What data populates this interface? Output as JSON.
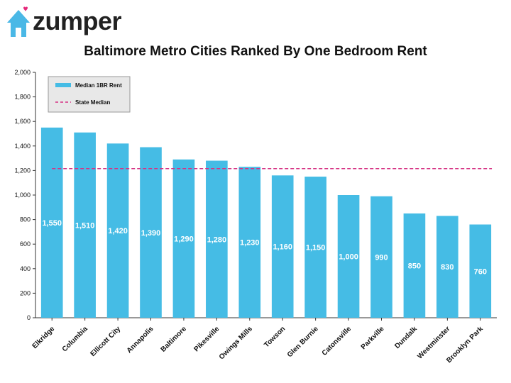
{
  "brand": {
    "name": "zumper",
    "logo_icon": "house-with-heart-icon",
    "logo_color": "#4ab8e6",
    "heart_color": "#e5287a"
  },
  "chart_data": {
    "type": "bar",
    "title": "Baltimore Metro Cities Ranked By One Bedroom Rent",
    "categories": [
      "Elkridge",
      "Columbia",
      "Ellicott City",
      "Annapolis",
      "Baltimore",
      "Pikesville",
      "Owings Mills",
      "Towson",
      "Glen Burnie",
      "Catonsville",
      "Parkville",
      "Dundalk",
      "Westminster",
      "Brooklyn Park"
    ],
    "series": [
      {
        "name": "Median 1BR Rent",
        "values": [
          1550,
          1510,
          1420,
          1390,
          1290,
          1280,
          1230,
          1160,
          1150,
          1000,
          990,
          850,
          830,
          760
        ],
        "color": "#45bce5"
      }
    ],
    "data_labels": [
      "1,550",
      "1,510",
      "1,420",
      "1,390",
      "1,290",
      "1,280",
      "1,230",
      "1,160",
      "1,150",
      "1,000",
      "990",
      "850",
      "830",
      "760"
    ],
    "reference_line": {
      "name": "State Median",
      "value": 1215,
      "color": "#d63384",
      "style": "dashed"
    },
    "ylim": [
      0,
      2000
    ],
    "yticks": [
      0,
      200,
      400,
      600,
      800,
      1000,
      1200,
      1400,
      1600,
      1800,
      2000
    ],
    "ytick_labels": [
      "0",
      "200",
      "400",
      "600",
      "800",
      "1,000",
      "1,200",
      "1,400",
      "1,600",
      "1,800",
      "2,000"
    ],
    "xlabel": "",
    "ylabel": "",
    "grid": false,
    "legend": {
      "placement": "top-left",
      "background": "#e8e8e8"
    }
  }
}
